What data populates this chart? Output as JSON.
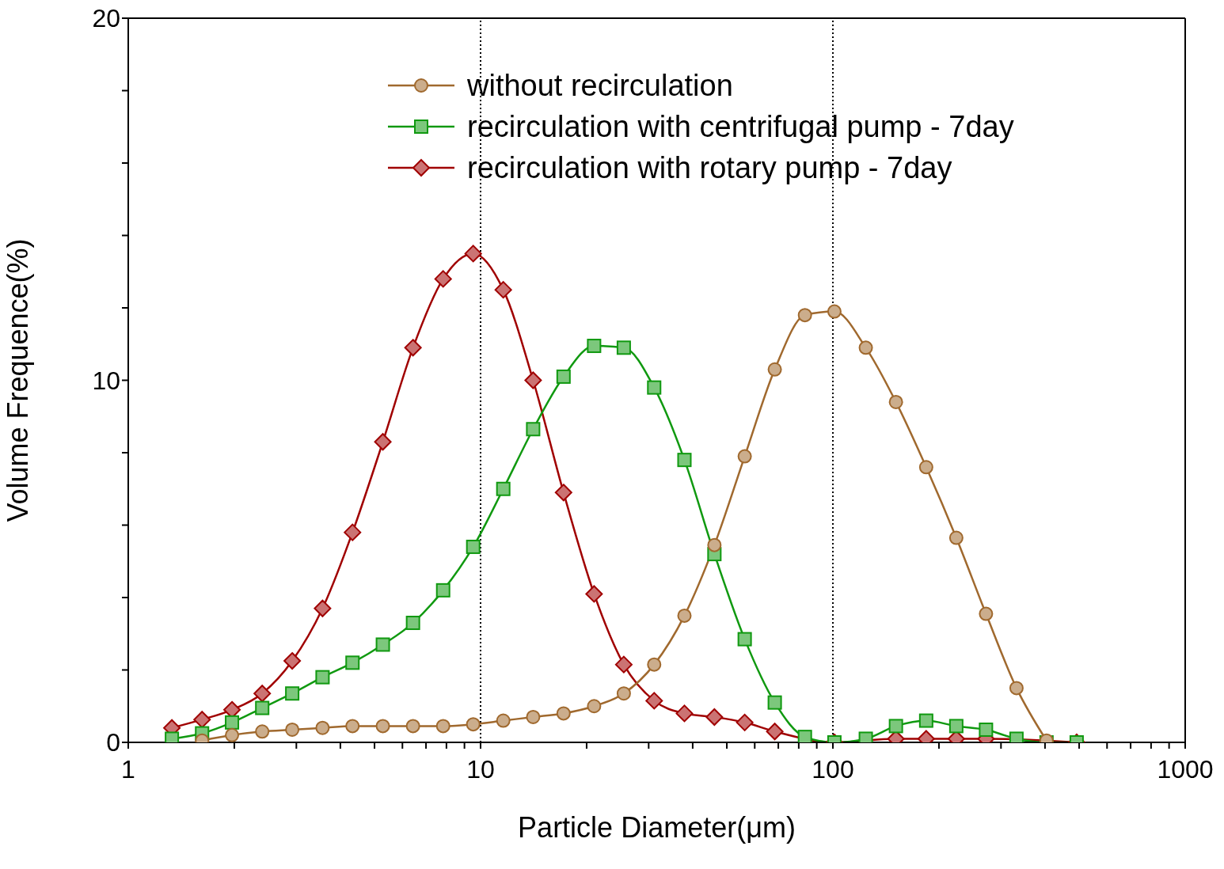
{
  "chart_data": {
    "type": "line",
    "xlabel": "Particle Diameter(μm)",
    "ylabel": "Volume Frequence(%)",
    "x": [
      1.33,
      1.62,
      1.97,
      2.4,
      2.92,
      3.56,
      4.33,
      5.28,
      6.43,
      7.83,
      9.53,
      11.6,
      14.1,
      17.2,
      21,
      25.5,
      31.1,
      37.9,
      46.1,
      56.2,
      68.4,
      83.3,
      101,
      124,
      151,
      184,
      224,
      272,
      332,
      404,
      492
    ],
    "series": [
      {
        "name": "without recirculation",
        "color": "#a0692e",
        "marker": "circle",
        "values": [
          null,
          0.05,
          0.2,
          0.3,
          0.35,
          0.4,
          0.45,
          0.45,
          0.45,
          0.45,
          0.5,
          0.6,
          0.7,
          0.8,
          1.0,
          1.35,
          2.15,
          3.5,
          5.45,
          7.9,
          10.3,
          11.8,
          11.9,
          10.9,
          9.4,
          7.6,
          5.65,
          3.55,
          1.5,
          0.05,
          null
        ]
      },
      {
        "name": "recirculation with centrifugal pump - 7day",
        "color": "#109910",
        "marker": "square",
        "values": [
          0.1,
          0.25,
          0.55,
          0.95,
          1.35,
          1.8,
          2.2,
          2.7,
          3.3,
          4.2,
          5.4,
          7.0,
          8.65,
          10.1,
          10.95,
          10.9,
          9.8,
          7.8,
          5.2,
          2.85,
          1.1,
          0.15,
          0,
          0.1,
          0.45,
          0.6,
          0.45,
          0.35,
          0.1,
          0,
          0
        ]
      },
      {
        "name": "recirculation with rotary pump - 7day",
        "color": "#a00000",
        "marker": "diamond",
        "values": [
          0.4,
          0.63,
          0.9,
          1.35,
          2.25,
          3.7,
          5.8,
          8.3,
          10.9,
          12.8,
          13.5,
          12.5,
          10.0,
          6.9,
          4.1,
          2.15,
          1.15,
          0.8,
          0.7,
          0.55,
          0.3,
          null,
          0,
          null,
          0.1,
          0.1,
          0.1,
          0.1,
          null,
          null,
          0
        ]
      }
    ],
    "log": "x",
    "xlim": [
      1,
      1000
    ],
    "xticks": [
      1,
      {
        "value": 2,
        "label": null
      },
      {
        "value": 3,
        "label": null
      },
      {
        "value": 4,
        "label": null
      },
      {
        "value": 5,
        "label": null
      },
      {
        "value": 6,
        "label": null
      },
      {
        "value": 7,
        "label": null
      },
      {
        "value": 8,
        "label": null
      },
      {
        "value": 9,
        "label": null
      },
      10,
      {
        "value": 20,
        "label": null
      },
      {
        "value": 30,
        "label": null
      },
      {
        "value": 40,
        "label": null
      },
      {
        "value": 50,
        "label": null
      },
      {
        "value": 60,
        "label": null
      },
      {
        "value": 70,
        "label": null
      },
      {
        "value": 80,
        "label": null
      },
      {
        "value": 90,
        "label": null
      },
      100,
      {
        "value": 200,
        "label": null
      },
      {
        "value": 300,
        "label": null
      },
      {
        "value": 400,
        "label": null
      },
      {
        "value": 500,
        "label": null
      },
      {
        "value": 600,
        "label": null
      },
      {
        "value": 700,
        "label": null
      },
      {
        "value": 800,
        "label": null
      },
      {
        "value": 900,
        "label": null
      },
      1000
    ],
    "ylim": [
      0,
      20
    ],
    "yticks": [
      0,
      {
        "value": 2,
        "label": null
      },
      {
        "value": 4,
        "label": null
      },
      {
        "value": 6,
        "label": null
      },
      {
        "value": 8,
        "label": null
      },
      10,
      {
        "value": 12,
        "label": null
      },
      {
        "value": 14,
        "label": null
      },
      {
        "value": 16,
        "label": null
      },
      {
        "value": 18,
        "label": null
      },
      20
    ],
    "ref_lines": [
      {
        "axis": "x",
        "value": 10,
        "color": "#000000",
        "line_style": "dotted"
      },
      {
        "axis": "x",
        "value": 100,
        "color": "#000000",
        "line_style": "dotted"
      }
    ],
    "legend": "top",
    "grid": false,
    "line_style": "solid"
  }
}
